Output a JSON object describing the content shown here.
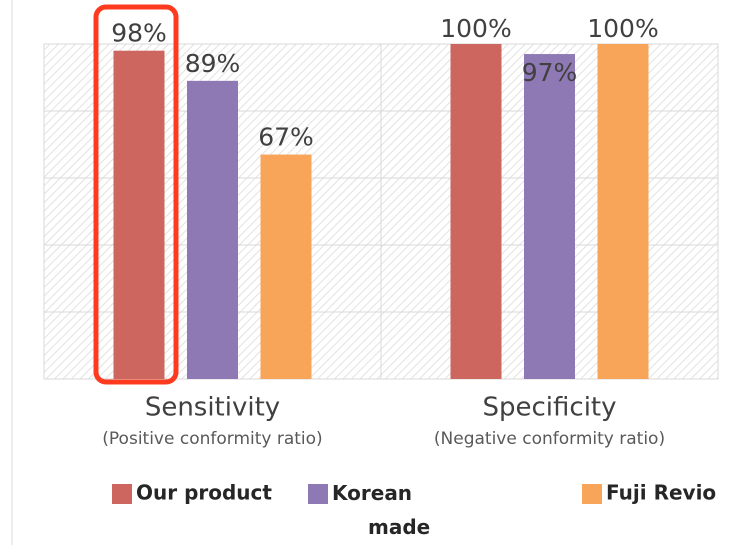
{
  "chart_data": {
    "type": "bar",
    "categories": [
      "Sensitivity",
      "Specificity"
    ],
    "category_notes": [
      "(Positive conformity  ratio)",
      "(Negative conformity ratio)"
    ],
    "series": [
      {
        "name": "Our product",
        "color": "#cd665e",
        "values": [
          98,
          100
        ],
        "value_labels": [
          "98%",
          "100%"
        ]
      },
      {
        "name": "Korean made",
        "color": "#8e79b4",
        "values": [
          89,
          97
        ],
        "value_labels": [
          "89%",
          "97%"
        ]
      },
      {
        "name": "Fuji Revio",
        "color": "#f8a55a",
        "values": [
          67,
          100
        ],
        "value_labels": [
          "67%",
          "100%"
        ]
      }
    ],
    "ylim": [
      0,
      100
    ],
    "yticks": [
      0,
      20,
      40,
      60,
      80,
      100
    ],
    "grid": true,
    "legend": "bottom"
  }
}
